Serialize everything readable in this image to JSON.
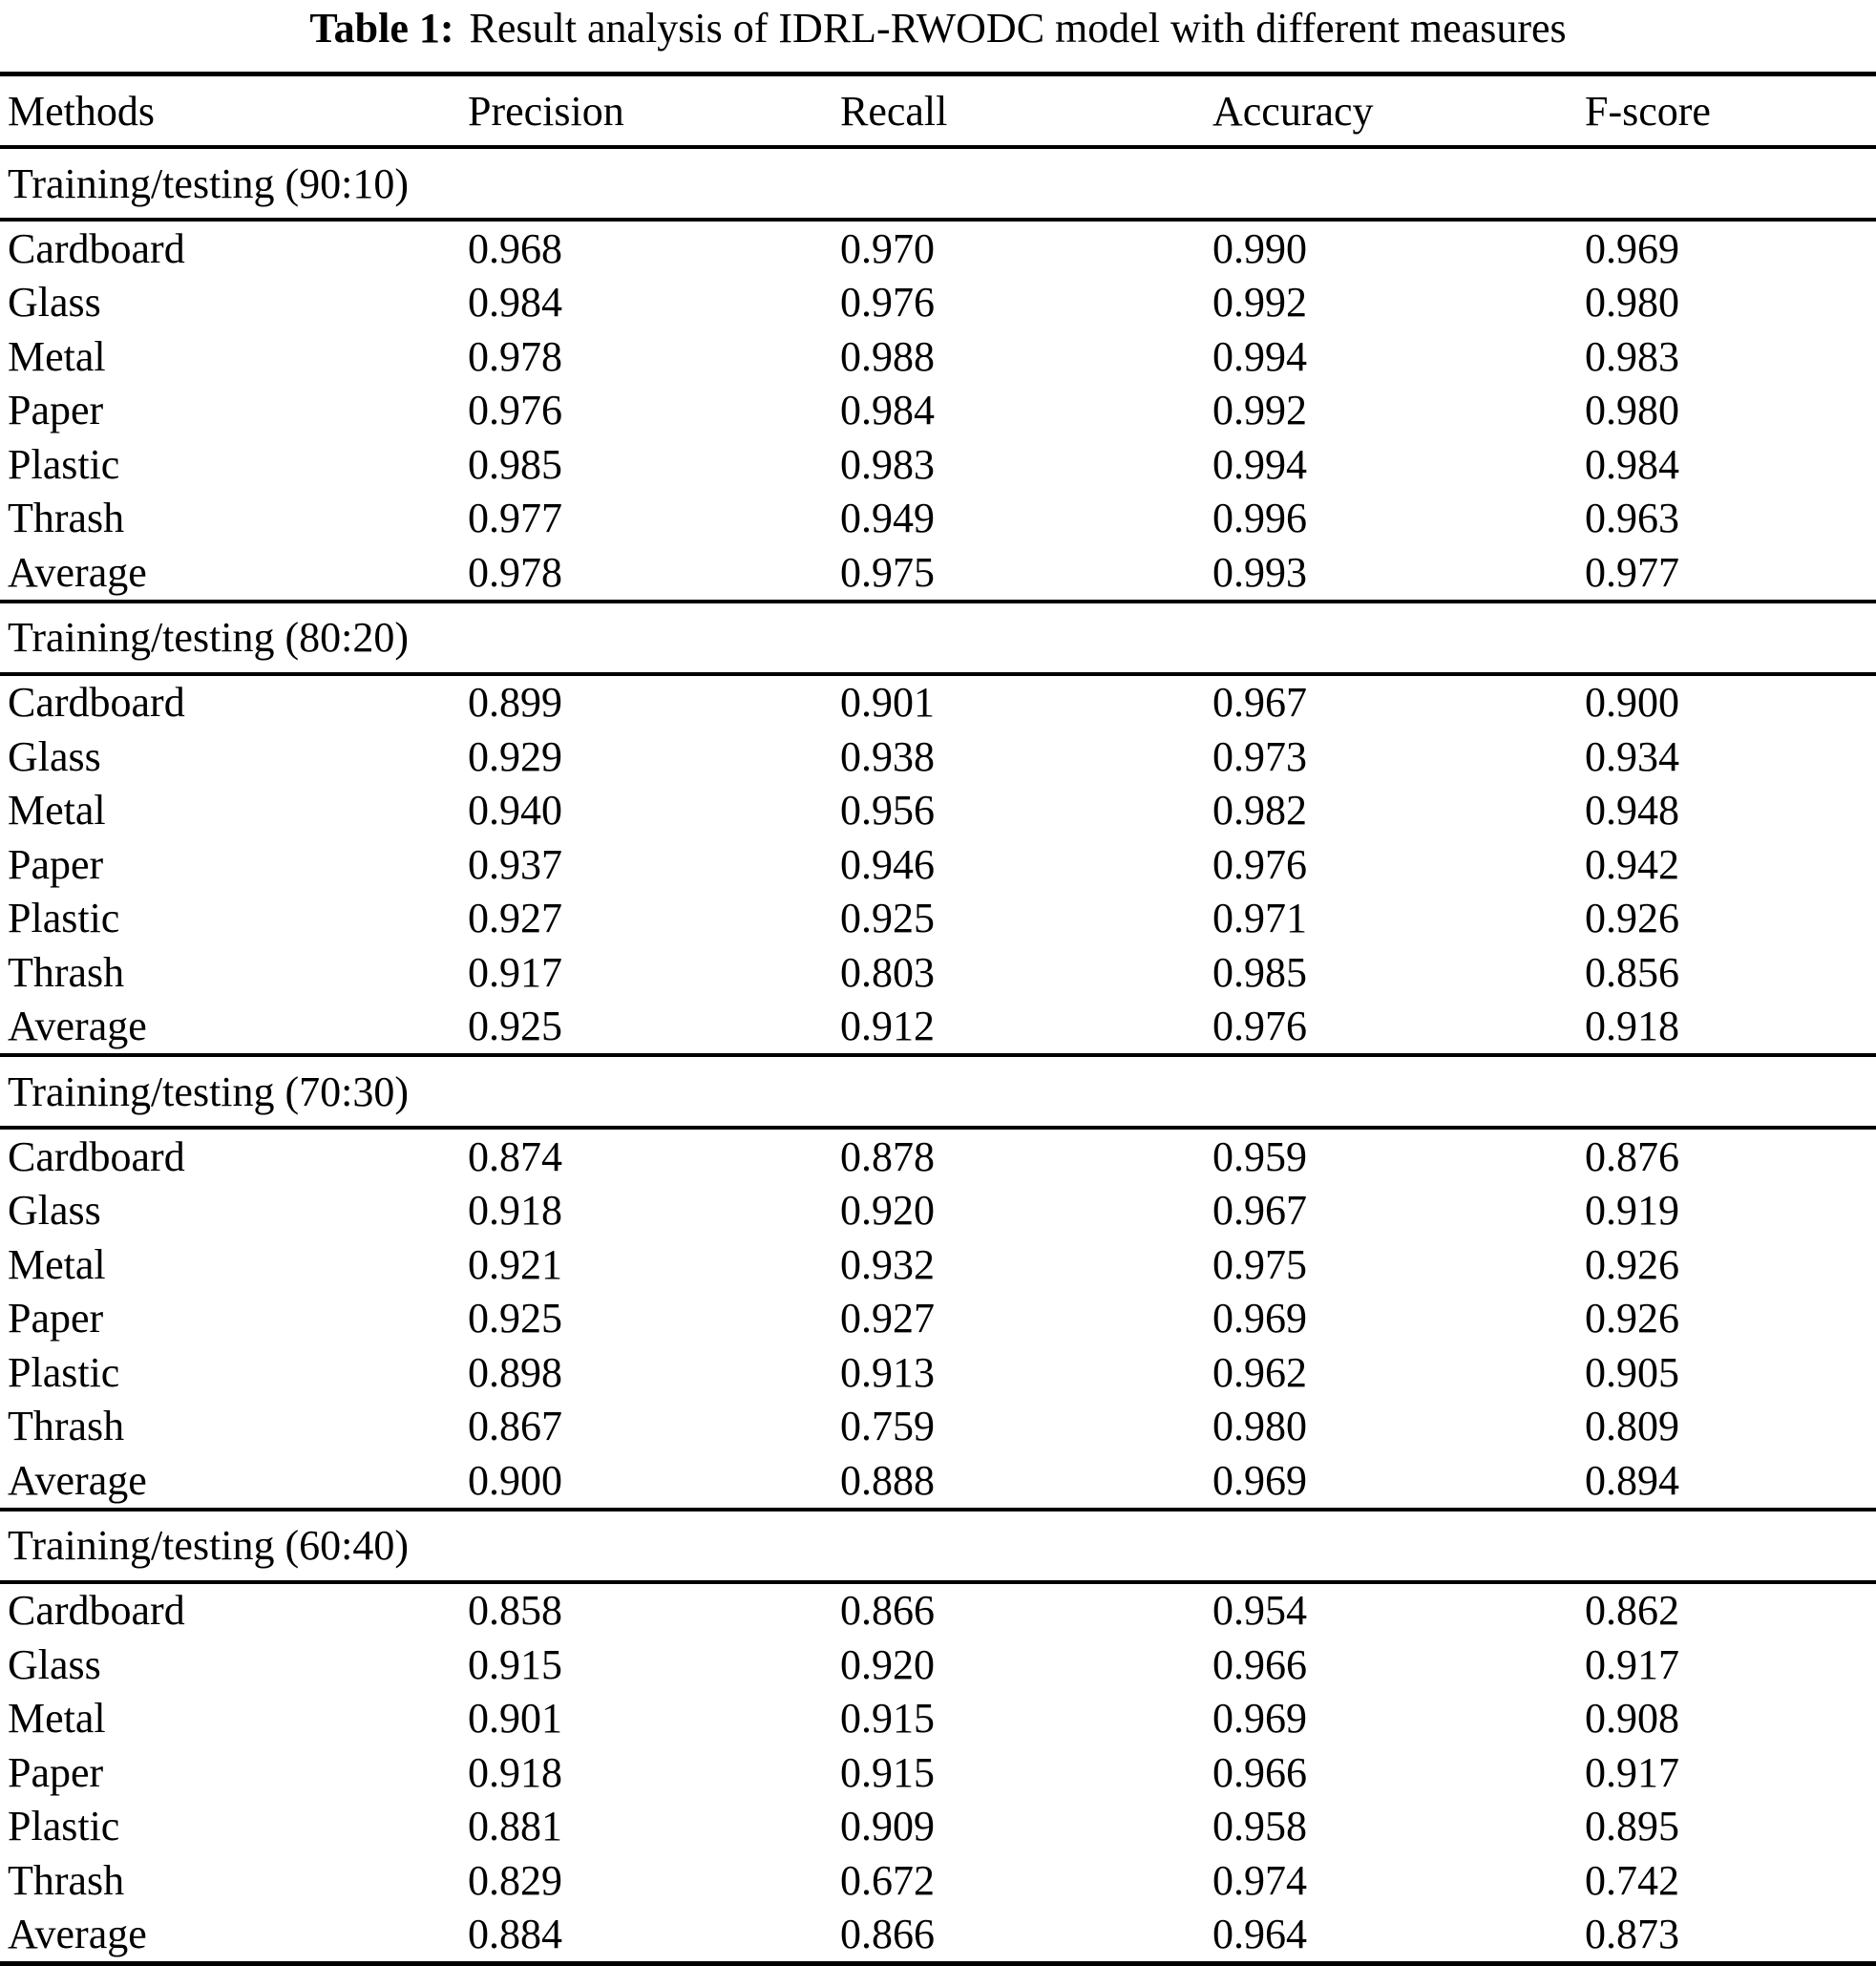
{
  "caption": {
    "label": "Table 1:",
    "text": "Result analysis of IDRL-RWODC model with different measures"
  },
  "columns": [
    "Methods",
    "Precision",
    "Recall",
    "Accuracy",
    "F-score"
  ],
  "sections": [
    {
      "title": "Training/testing (90:10)",
      "rows": [
        {
          "method": "Cardboard",
          "values": [
            "0.968",
            "0.970",
            "0.990",
            "0.969"
          ]
        },
        {
          "method": "Glass",
          "values": [
            "0.984",
            "0.976",
            "0.992",
            "0.980"
          ]
        },
        {
          "method": "Metal",
          "values": [
            "0.978",
            "0.988",
            "0.994",
            "0.983"
          ]
        },
        {
          "method": "Paper",
          "values": [
            "0.976",
            "0.984",
            "0.992",
            "0.980"
          ]
        },
        {
          "method": "Plastic",
          "values": [
            "0.985",
            "0.983",
            "0.994",
            "0.984"
          ]
        },
        {
          "method": "Thrash",
          "values": [
            "0.977",
            "0.949",
            "0.996",
            "0.963"
          ]
        },
        {
          "method": "Average",
          "values": [
            "0.978",
            "0.975",
            "0.993",
            "0.977"
          ]
        }
      ]
    },
    {
      "title": "Training/testing (80:20)",
      "rows": [
        {
          "method": "Cardboard",
          "values": [
            "0.899",
            "0.901",
            "0.967",
            "0.900"
          ]
        },
        {
          "method": "Glass",
          "values": [
            "0.929",
            "0.938",
            "0.973",
            "0.934"
          ]
        },
        {
          "method": "Metal",
          "values": [
            "0.940",
            "0.956",
            "0.982",
            "0.948"
          ]
        },
        {
          "method": "Paper",
          "values": [
            "0.937",
            "0.946",
            "0.976",
            "0.942"
          ]
        },
        {
          "method": "Plastic",
          "values": [
            "0.927",
            "0.925",
            "0.971",
            "0.926"
          ]
        },
        {
          "method": "Thrash",
          "values": [
            "0.917",
            "0.803",
            "0.985",
            "0.856"
          ]
        },
        {
          "method": "Average",
          "values": [
            "0.925",
            "0.912",
            "0.976",
            "0.918"
          ]
        }
      ]
    },
    {
      "title": "Training/testing (70:30)",
      "rows": [
        {
          "method": "Cardboard",
          "values": [
            "0.874",
            "0.878",
            "0.959",
            "0.876"
          ]
        },
        {
          "method": "Glass",
          "values": [
            "0.918",
            "0.920",
            "0.967",
            "0.919"
          ]
        },
        {
          "method": "Metal",
          "values": [
            "0.921",
            "0.932",
            "0.975",
            "0.926"
          ]
        },
        {
          "method": "Paper",
          "values": [
            "0.925",
            "0.927",
            "0.969",
            "0.926"
          ]
        },
        {
          "method": "Plastic",
          "values": [
            "0.898",
            "0.913",
            "0.962",
            "0.905"
          ]
        },
        {
          "method": "Thrash",
          "values": [
            "0.867",
            "0.759",
            "0.980",
            "0.809"
          ]
        },
        {
          "method": "Average",
          "values": [
            "0.900",
            "0.888",
            "0.969",
            "0.894"
          ]
        }
      ]
    },
    {
      "title": "Training/testing (60:40)",
      "rows": [
        {
          "method": "Cardboard",
          "values": [
            "0.858",
            "0.866",
            "0.954",
            "0.862"
          ]
        },
        {
          "method": "Glass",
          "values": [
            "0.915",
            "0.920",
            "0.966",
            "0.917"
          ]
        },
        {
          "method": "Metal",
          "values": [
            "0.901",
            "0.915",
            "0.969",
            "0.908"
          ]
        },
        {
          "method": "Paper",
          "values": [
            "0.918",
            "0.915",
            "0.966",
            "0.917"
          ]
        },
        {
          "method": "Plastic",
          "values": [
            "0.881",
            "0.909",
            "0.958",
            "0.895"
          ]
        },
        {
          "method": "Thrash",
          "values": [
            "0.829",
            "0.672",
            "0.974",
            "0.742"
          ]
        },
        {
          "method": "Average",
          "values": [
            "0.884",
            "0.866",
            "0.964",
            "0.873"
          ]
        }
      ]
    }
  ]
}
